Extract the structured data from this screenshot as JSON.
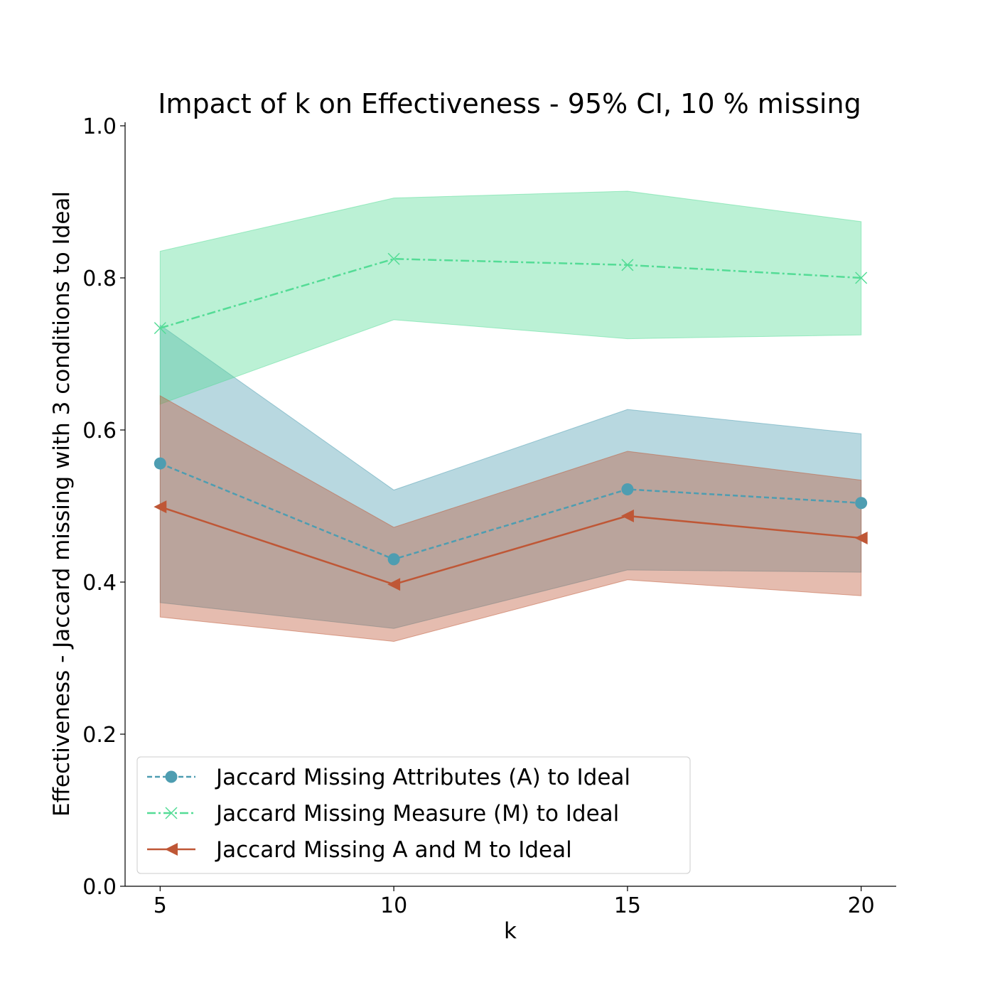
{
  "chart_data": {
    "type": "line",
    "title": "Impact of k on Effectiveness - 95% CI, 10 % missing",
    "xlabel": "k",
    "ylabel": "Effectiveness - Jaccard missing with 3 conditions to Ideal",
    "x": [
      5,
      10,
      15,
      20
    ],
    "xticks": [
      "5",
      "10",
      "15",
      "20"
    ],
    "yticks": [
      "0.0",
      "0.2",
      "0.4",
      "0.6",
      "0.8",
      "1.0"
    ],
    "xlim": [
      4.25,
      20.75
    ],
    "ylim": [
      0.0,
      1.0
    ],
    "grid": false,
    "legend_position": "lower-left",
    "series": [
      {
        "name": "Jaccard Missing Attributes (A) to Ideal",
        "color": "#4e9db1",
        "line_style": "dashed",
        "marker": "circle",
        "values": [
          0.556,
          0.43,
          0.522,
          0.504
        ],
        "ci_lower": [
          0.373,
          0.339,
          0.416,
          0.413
        ],
        "ci_upper": [
          0.738,
          0.521,
          0.627,
          0.595
        ]
      },
      {
        "name": "Jaccard Missing Measure (M) to Ideal",
        "color": "#54dc96",
        "line_style": "dashdot",
        "marker": "x",
        "values": [
          0.734,
          0.825,
          0.817,
          0.8
        ],
        "ci_lower": [
          0.634,
          0.745,
          0.72,
          0.725
        ],
        "ci_upper": [
          0.835,
          0.905,
          0.914,
          0.874
        ]
      },
      {
        "name": "Jaccard Missing A and M to Ideal",
        "color": "#bf5736",
        "line_style": "solid",
        "marker": "triangle-left",
        "values": [
          0.499,
          0.397,
          0.487,
          0.458
        ],
        "ci_lower": [
          0.354,
          0.322,
          0.403,
          0.382
        ],
        "ci_upper": [
          0.645,
          0.472,
          0.572,
          0.534
        ]
      }
    ]
  }
}
